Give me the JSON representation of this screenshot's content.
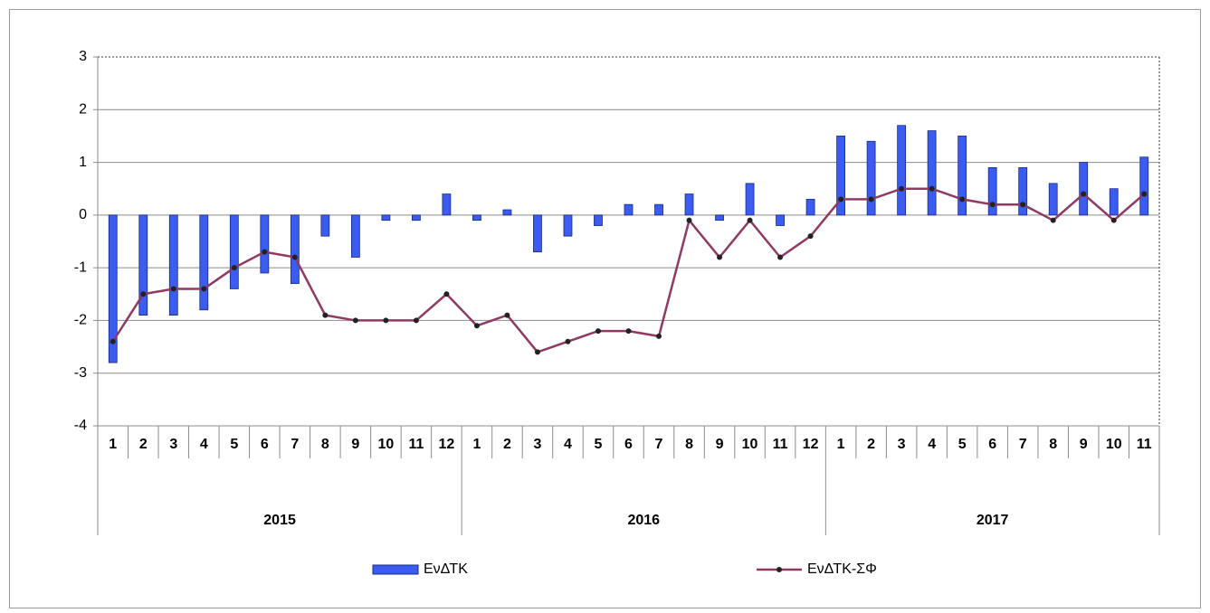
{
  "chart_data": {
    "type": "bar-line",
    "groups": [
      {
        "name": "2015",
        "categories": [
          "1",
          "2",
          "3",
          "4",
          "5",
          "6",
          "7",
          "8",
          "9",
          "10",
          "11",
          "12"
        ]
      },
      {
        "name": "2016",
        "categories": [
          "1",
          "2",
          "3",
          "4",
          "5",
          "6",
          "7",
          "8",
          "9",
          "10",
          "11",
          "12"
        ]
      },
      {
        "name": "2017",
        "categories": [
          "1",
          "2",
          "3",
          "4",
          "5",
          "6",
          "7",
          "8",
          "9",
          "10",
          "11"
        ]
      }
    ],
    "series": [
      {
        "name": "ΕνΔΤΚ",
        "type": "bar",
        "color": "#3a5cf0",
        "values": [
          -2.8,
          -1.9,
          -1.9,
          -1.8,
          -1.4,
          -1.1,
          -1.3,
          -0.4,
          -0.8,
          -0.1,
          -0.1,
          0.4,
          -0.1,
          0.1,
          -0.7,
          -0.4,
          -0.2,
          0.2,
          0.2,
          0.4,
          -0.1,
          0.6,
          -0.2,
          0.3,
          1.5,
          1.4,
          1.7,
          1.6,
          1.5,
          0.9,
          0.9,
          0.6,
          1.0,
          0.5,
          1.1
        ]
      },
      {
        "name": "ΕνΔΤΚ-ΣΦ",
        "type": "line",
        "color": "#8e3a64",
        "values": [
          -2.4,
          -1.5,
          -1.4,
          -1.4,
          -1.0,
          -0.7,
          -0.8,
          -1.9,
          -2.0,
          -2.0,
          -2.0,
          -1.5,
          -2.1,
          -1.9,
          -2.6,
          -2.4,
          -2.2,
          -2.2,
          -2.3,
          -0.1,
          -0.8,
          -0.1,
          -0.8,
          -0.4,
          0.3,
          0.3,
          0.5,
          0.5,
          0.3,
          0.2,
          0.2,
          -0.1,
          0.4,
          -0.1,
          0.4
        ]
      }
    ],
    "ylim": [
      -4,
      3
    ],
    "yticks": [
      -4,
      -3,
      -2,
      -1,
      0,
      1,
      2,
      3
    ],
    "grid": true,
    "legend": "bottom"
  }
}
